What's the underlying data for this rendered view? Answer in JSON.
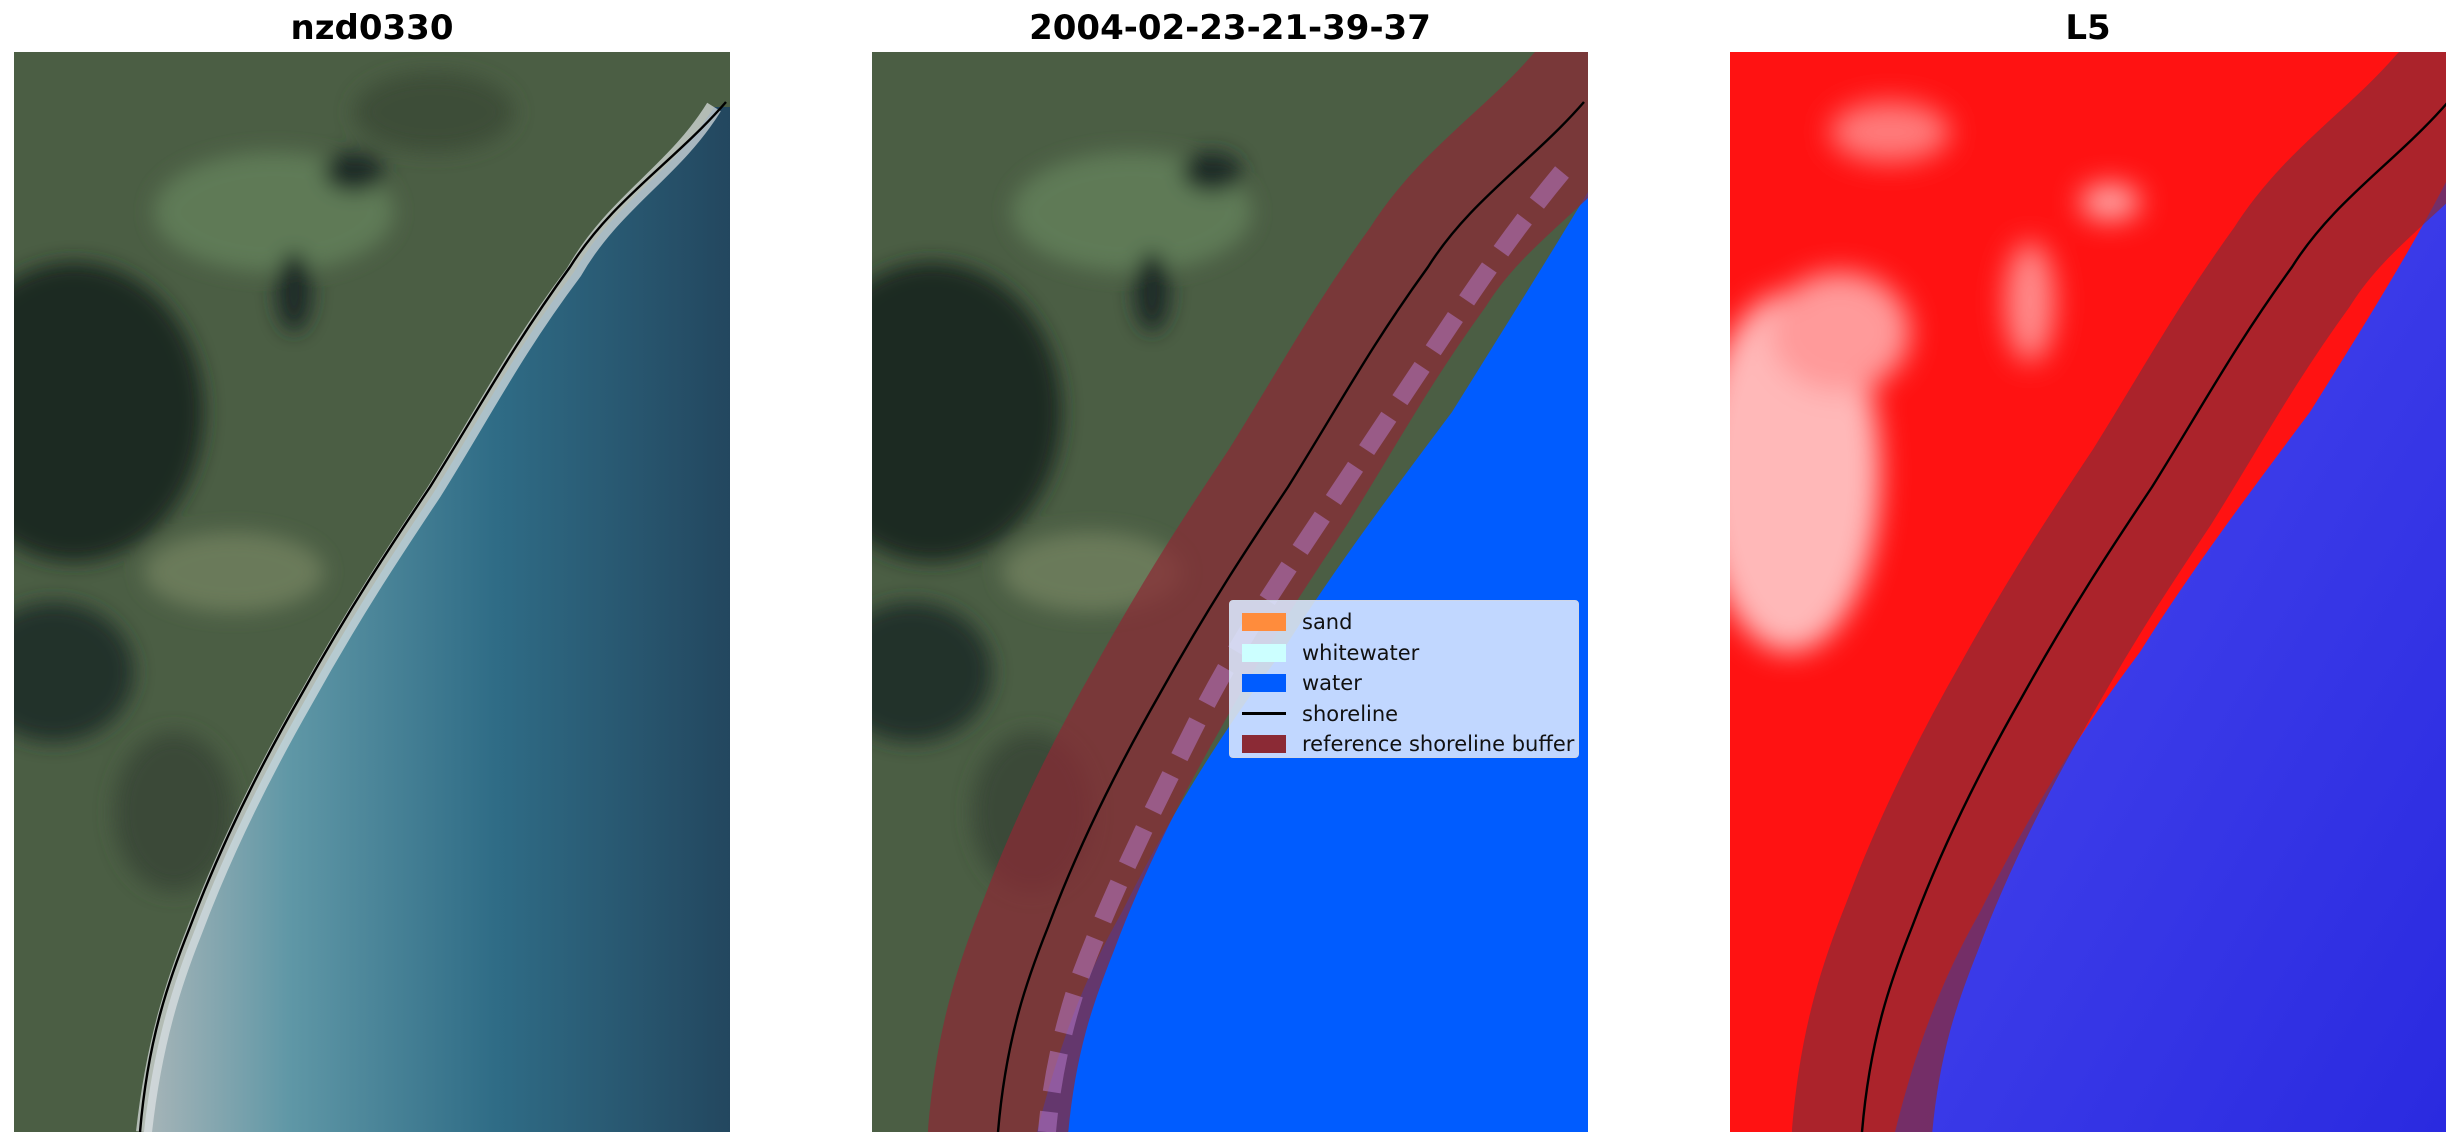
{
  "panels": [
    {
      "title": "nzd0330",
      "view": "true-color satellite image"
    },
    {
      "title": "2004-02-23-21-39-37",
      "view": "classified image"
    },
    {
      "title": "L5",
      "view": "water index (red land / blue water)"
    }
  ],
  "legend": {
    "items": [
      {
        "label": "sand",
        "color": "#ff8c3c",
        "kind": "patch"
      },
      {
        "label": "whitewater",
        "color": "#ccffff",
        "kind": "patch"
      },
      {
        "label": "water",
        "color": "#005cff",
        "kind": "patch"
      },
      {
        "label": "shoreline",
        "color": "#000000",
        "kind": "line"
      },
      {
        "label": "reference shoreline buffer",
        "color": "#8b2a35",
        "kind": "patch"
      }
    ]
  },
  "colors": {
    "land_dark": "#2f3d2e",
    "land_mid": "#4e6045",
    "ocean": "#2f6c86",
    "surf": "#d8dde0",
    "classified_water": "#005cff",
    "buffer": "#8b2a35",
    "index_land": "#ff1010",
    "index_water": "#2020e8"
  }
}
